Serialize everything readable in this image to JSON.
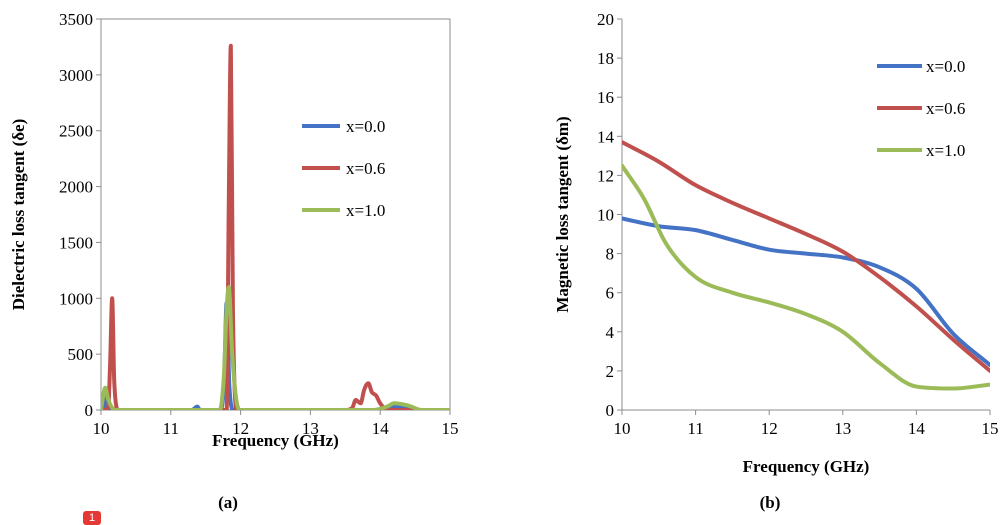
{
  "chart_data": [
    {
      "type": "line",
      "panel_label": "(a)",
      "xlabel": "Frequency (GHz)",
      "ylabel": "Dielectric loss tangent (δe)",
      "xlim": [
        10,
        15
      ],
      "ylim": [
        0,
        3500
      ],
      "xticks": [
        10,
        11,
        12,
        13,
        14,
        15
      ],
      "yticks": [
        0,
        500,
        1000,
        1500,
        2000,
        2500,
        3000,
        3500
      ],
      "legend_position": "right",
      "series": [
        {
          "name": "x=0.0",
          "color": "#4472c4",
          "x": [
            10.0,
            10.05,
            10.08,
            10.12,
            10.2,
            11.3,
            11.38,
            11.42,
            11.5,
            11.7,
            11.76,
            11.8,
            11.84,
            11.9,
            12.0,
            14.0,
            14.2,
            14.35,
            14.5,
            15.0
          ],
          "y": [
            0,
            10,
            160,
            10,
            0,
            0,
            30,
            0,
            0,
            0,
            200,
            960,
            200,
            0,
            0,
            0,
            30,
            20,
            0,
            0
          ]
        },
        {
          "name": "x=0.6",
          "color": "#c0504d",
          "x": [
            10.0,
            10.1,
            10.13,
            10.16,
            10.19,
            10.25,
            11.7,
            11.8,
            11.83,
            11.86,
            11.89,
            11.95,
            13.5,
            13.6,
            13.65,
            13.72,
            13.77,
            13.83,
            13.88,
            13.94,
            14.0,
            14.1,
            15.0
          ],
          "y": [
            0,
            0,
            400,
            1000,
            250,
            0,
            0,
            0,
            1800,
            3260,
            900,
            0,
            0,
            20,
            90,
            60,
            180,
            240,
            160,
            130,
            60,
            0,
            0
          ]
        },
        {
          "name": "x=1.0",
          "color": "#9bbb59",
          "x": [
            10.0,
            10.03,
            10.06,
            10.1,
            10.15,
            10.2,
            10.3,
            11.6,
            11.7,
            11.76,
            11.8,
            11.83,
            11.88,
            11.95,
            12.0,
            13.9,
            14.1,
            14.2,
            14.4,
            14.6,
            15.0
          ],
          "y": [
            0,
            120,
            200,
            100,
            30,
            0,
            0,
            0,
            0,
            300,
            900,
            1100,
            500,
            50,
            0,
            0,
            30,
            60,
            40,
            0,
            0
          ]
        }
      ]
    },
    {
      "type": "line",
      "panel_label": "(b)",
      "xlabel": "Frequency (GHz)",
      "ylabel": "Magnetic loss tangent (δm)",
      "xlim": [
        10,
        15
      ],
      "ylim": [
        0,
        20
      ],
      "xticks": [
        10,
        11,
        12,
        13,
        14,
        15
      ],
      "yticks": [
        0,
        2,
        4,
        6,
        8,
        10,
        12,
        14,
        16,
        18,
        20
      ],
      "legend_position": "top-right",
      "series": [
        {
          "name": "x=0.0",
          "color": "#4472c4",
          "x": [
            10.0,
            10.5,
            11.0,
            11.5,
            12.0,
            12.5,
            13.0,
            13.5,
            14.0,
            14.5,
            15.0
          ],
          "y": [
            9.8,
            9.4,
            9.2,
            8.7,
            8.2,
            8.0,
            7.8,
            7.3,
            6.2,
            3.9,
            2.3
          ]
        },
        {
          "name": "x=0.6",
          "color": "#c0504d",
          "x": [
            10.0,
            10.5,
            11.0,
            11.5,
            12.0,
            12.5,
            13.0,
            13.5,
            14.0,
            14.5,
            15.0
          ],
          "y": [
            13.7,
            12.7,
            11.5,
            10.6,
            9.8,
            9.0,
            8.1,
            6.8,
            5.3,
            3.6,
            2.0
          ]
        },
        {
          "name": "x=1.0",
          "color": "#9bbb59",
          "x": [
            10.0,
            10.3,
            10.6,
            11.0,
            11.5,
            12.0,
            12.5,
            13.0,
            13.5,
            14.0,
            14.5,
            15.0
          ],
          "y": [
            12.5,
            10.8,
            8.5,
            6.8,
            6.0,
            5.5,
            4.9,
            4.0,
            2.4,
            1.2,
            1.1,
            1.3
          ]
        }
      ]
    }
  ],
  "badge_text": "1"
}
